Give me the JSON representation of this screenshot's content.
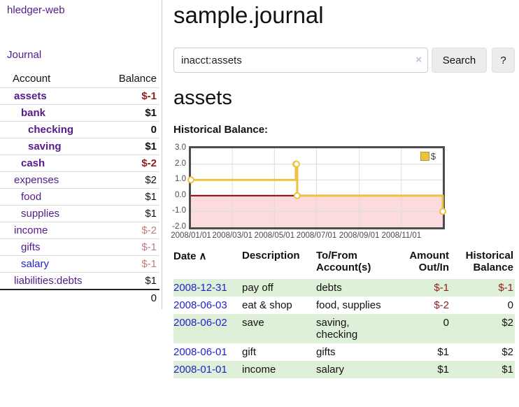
{
  "app": {
    "title": "hledger-web"
  },
  "sidebar": {
    "journal_link": "Journal",
    "table": {
      "headers": {
        "account": "Account",
        "balance": "Balance"
      },
      "rows": [
        {
          "name": "assets",
          "balance": "$-1"
        },
        {
          "name": "bank",
          "balance": "$1"
        },
        {
          "name": "checking",
          "balance": "0"
        },
        {
          "name": "saving",
          "balance": "$1"
        },
        {
          "name": "cash",
          "balance": "$-2"
        },
        {
          "name": "expenses",
          "balance": "$2"
        },
        {
          "name": "food",
          "balance": "$1"
        },
        {
          "name": "supplies",
          "balance": "$1"
        },
        {
          "name": "income",
          "balance": "$-2"
        },
        {
          "name": "gifts",
          "balance": "$-1"
        },
        {
          "name": "salary",
          "balance": "$-1"
        },
        {
          "name": "liabilities:debts",
          "balance": "$1"
        }
      ],
      "total": "0"
    }
  },
  "main": {
    "title": "sample.journal",
    "search": {
      "value": "inacct:assets",
      "clear_icon": "×",
      "button": "Search",
      "help_button": "?"
    },
    "account_heading": "assets",
    "chart_label": "Historical Balance:"
  },
  "chart_data": {
    "type": "line",
    "title": "Historical Balance",
    "series": [
      {
        "name": "$",
        "color": "#edc240",
        "step": true,
        "points": [
          [
            "2008-01-01",
            1
          ],
          [
            "2008-06-01",
            2
          ],
          [
            "2008-06-02",
            2
          ],
          [
            "2008-06-03",
            0
          ],
          [
            "2008-12-31",
            -1
          ]
        ]
      }
    ],
    "x_ticks": [
      "2008/01/01",
      "2008/03/01",
      "2008/05/01",
      "2008/07/01",
      "2008/09/01",
      "2008/11/01"
    ],
    "y_ticks": [
      "3.0",
      "2.0",
      "1.0",
      "0.0",
      "-1.0",
      "-2.0"
    ],
    "xlim": [
      "2008-01-01",
      "2008-12-31"
    ],
    "ylim": [
      -2,
      3
    ],
    "grid": true,
    "legend": {
      "label": "$",
      "position": "top-right"
    },
    "colors": {
      "negative_region": "#fbdbdb",
      "zero_line": "#8b0000",
      "gridline": "#dcdcdc",
      "plot_border": "#4d4d4d"
    }
  },
  "transactions": {
    "sort_icon": "∧",
    "headers": {
      "date": "Date",
      "description": "Description",
      "accounts": "To/From Account(s)",
      "amount": "Amount Out/In",
      "balance": "Historical Balance"
    },
    "rows": [
      {
        "date": "2008-12-31",
        "description": "pay off",
        "accounts": "debts",
        "amount": "$-1",
        "balance": "$-1"
      },
      {
        "date": "2008-06-03",
        "description": "eat & shop",
        "accounts": "food, supplies",
        "amount": "$-2",
        "balance": "0"
      },
      {
        "date": "2008-06-02",
        "description": "save",
        "accounts": "saving, checking",
        "amount": "0",
        "balance": "$2"
      },
      {
        "date": "2008-06-01",
        "description": "gift",
        "accounts": "gifts",
        "amount": "$1",
        "balance": "$2"
      },
      {
        "date": "2008-01-01",
        "description": "income",
        "accounts": "salary",
        "amount": "$1",
        "balance": "$1"
      }
    ]
  }
}
